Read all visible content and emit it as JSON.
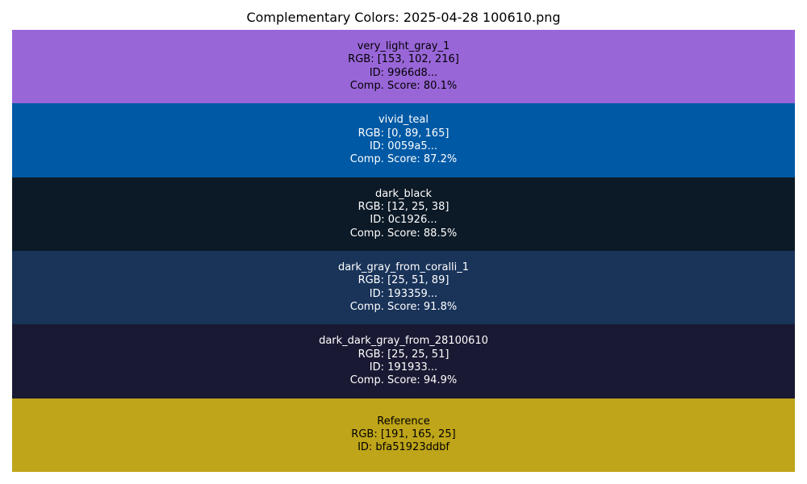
{
  "chart_data": {
    "type": "table",
    "title": "Complementary Colors: 2025-04-28 100610.png",
    "rows": [
      {
        "name": "very_light_gray_1",
        "rgb_label": "RGB: [153, 102, 216]",
        "id_label": "ID: 9966d8...",
        "score_label": "Comp. Score: 80.1%",
        "rgb": [
          153,
          102,
          216
        ],
        "score": 80.1,
        "color": "#9966d8",
        "text_color": "dark"
      },
      {
        "name": "vivid_teal",
        "rgb_label": "RGB: [0, 89, 165]",
        "id_label": "ID: 0059a5...",
        "score_label": "Comp. Score: 87.2%",
        "rgb": [
          0,
          89,
          165
        ],
        "score": 87.2,
        "color": "#0059a5",
        "text_color": "light"
      },
      {
        "name": "dark_black",
        "rgb_label": "RGB: [12, 25, 38]",
        "id_label": "ID: 0c1926...",
        "score_label": "Comp. Score: 88.5%",
        "rgb": [
          12,
          25,
          38
        ],
        "score": 88.5,
        "color": "#0c1926",
        "text_color": "light"
      },
      {
        "name": "dark_gray_from_coralli_1",
        "rgb_label": "RGB: [25, 51, 89]",
        "id_label": "ID: 193359...",
        "score_label": "Comp. Score: 91.8%",
        "rgb": [
          25,
          51,
          89
        ],
        "score": 91.8,
        "color": "#193359",
        "text_color": "light"
      },
      {
        "name": "dark_dark_gray_from_28100610",
        "rgb_label": "RGB: [25, 25, 51]",
        "id_label": "ID: 191933...",
        "score_label": "Comp. Score: 94.9%",
        "rgb": [
          25,
          25,
          51
        ],
        "score": 94.9,
        "color": "#191933",
        "text_color": "light"
      },
      {
        "name": "Reference",
        "rgb_label": "RGB: [191, 165, 25]",
        "id_label": "ID: bfa51923ddbf",
        "score_label": "",
        "rgb": [
          191,
          165,
          25
        ],
        "color": "#bfa519",
        "text_color": "dark"
      }
    ]
  }
}
